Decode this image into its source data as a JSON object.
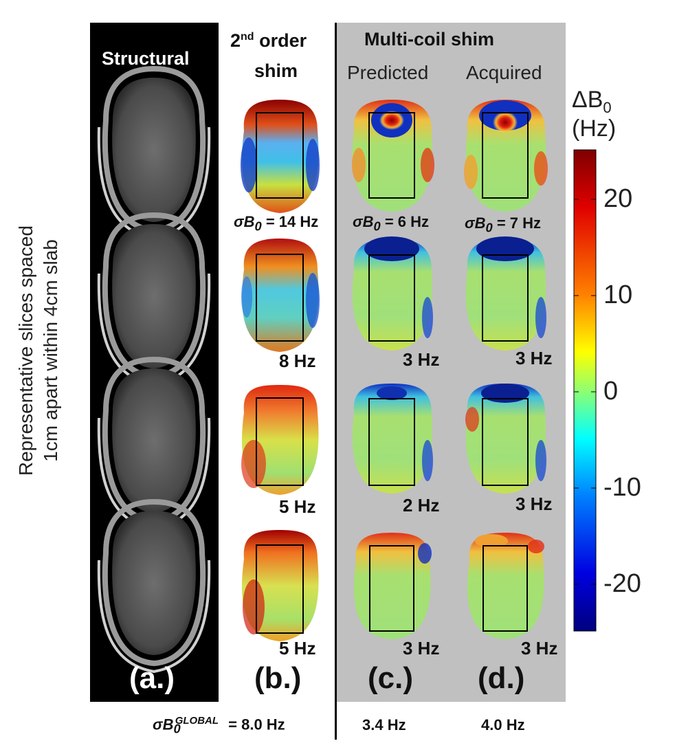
{
  "columns": {
    "structural": "Structural",
    "second_order": {
      "sup": "nd",
      "pre": "2",
      "line1_rest": "order",
      "line2": "shim"
    },
    "multicoil": "Multi-coil  shim",
    "predicted": "Predicted",
    "acquired": "Acquired"
  },
  "y_axis_label": {
    "line1": "Representative slices spaced",
    "line2": "1cm apart within 4cm slab"
  },
  "colorbar": {
    "title_delta": "ΔB",
    "title_sub": "0",
    "unit": "(Hz)",
    "ticks": [
      "20",
      "10",
      "0",
      "-10",
      "-20"
    ],
    "range": [
      -25,
      25
    ]
  },
  "sigma_labels": {
    "b": [
      "σB0 = 14 Hz",
      "8 Hz",
      "5 Hz",
      "5 Hz"
    ],
    "c": [
      "σB0 = 6 Hz",
      "3 Hz",
      "2 Hz",
      "3 Hz"
    ],
    "d": [
      "σB0 = 7 Hz",
      "3 Hz",
      "3 Hz",
      "3 Hz"
    ]
  },
  "sigma_first": {
    "b": {
      "sym": "σB",
      "sub": "0",
      "rest": " = 14 Hz"
    },
    "c": {
      "sym": "σB",
      "sub": "0",
      "rest": " = 6 Hz"
    },
    "d": {
      "sym": "σB",
      "sub": "0",
      "rest": " = 7 Hz"
    }
  },
  "panel_labels": [
    "(a.)",
    "(b.)",
    "(c.)",
    "(d.)"
  ],
  "global": {
    "sym": "σB",
    "sub": "0",
    "sup": "GLOBAL",
    "b": " = 8.0 Hz",
    "c": "3.4 Hz",
    "d": "4.0 Hz"
  }
}
